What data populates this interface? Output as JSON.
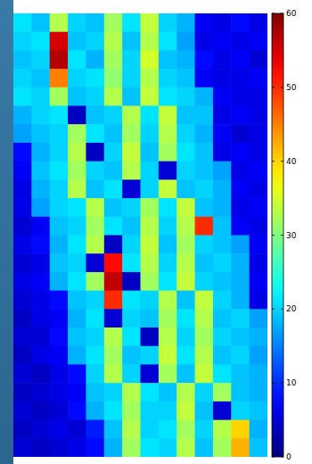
{
  "chart_data": {
    "type": "heatmap",
    "tick_labels": false,
    "cells": [
      [
        21,
        19,
        33,
        20,
        19,
        32,
        21,
        34,
        20,
        18,
        7,
        6,
        8,
        6
      ],
      [
        20,
        21,
        55,
        19,
        20,
        33,
        19,
        33,
        21,
        17,
        6,
        7,
        6,
        7
      ],
      [
        19,
        20,
        57,
        21,
        18,
        32,
        20,
        35,
        19,
        18,
        8,
        6,
        7,
        5
      ],
      [
        20,
        19,
        45,
        20,
        21,
        31,
        20,
        33,
        20,
        19,
        7,
        6,
        6,
        7
      ],
      [
        21,
        20,
        32,
        19,
        20,
        33,
        19,
        34,
        21,
        20,
        18,
        7,
        6,
        6
      ],
      [
        18,
        20,
        21,
        4,
        19,
        20,
        33,
        21,
        34,
        19,
        19,
        6,
        7,
        6
      ],
      [
        17,
        19,
        20,
        32,
        21,
        19,
        32,
        20,
        33,
        20,
        18,
        7,
        5,
        6
      ],
      [
        8,
        18,
        20,
        33,
        4,
        20,
        34,
        19,
        32,
        21,
        19,
        6,
        7,
        6
      ],
      [
        7,
        19,
        21,
        32,
        20,
        19,
        33,
        20,
        5,
        20,
        19,
        17,
        6,
        7
      ],
      [
        6,
        18,
        20,
        33,
        19,
        21,
        5,
        20,
        34,
        19,
        20,
        18,
        7,
        6
      ],
      [
        6,
        17,
        20,
        21,
        33,
        19,
        20,
        32,
        21,
        34,
        19,
        18,
        6,
        7
      ],
      [
        5,
        7,
        19,
        20,
        32,
        21,
        19,
        33,
        20,
        33,
        50,
        19,
        7,
        6
      ],
      [
        6,
        8,
        18,
        21,
        33,
        4,
        20,
        34,
        19,
        32,
        20,
        19,
        17,
        7
      ],
      [
        5,
        6,
        19,
        20,
        5,
        52,
        21,
        33,
        20,
        33,
        19,
        20,
        18,
        6
      ],
      [
        6,
        7,
        18,
        21,
        32,
        56,
        4,
        32,
        21,
        34,
        20,
        19,
        18,
        7
      ],
      [
        5,
        6,
        8,
        19,
        20,
        50,
        21,
        20,
        33,
        19,
        34,
        20,
        18,
        6
      ],
      [
        4,
        6,
        7,
        18,
        21,
        5,
        20,
        19,
        32,
        21,
        33,
        19,
        20,
        17
      ],
      [
        5,
        5,
        8,
        19,
        20,
        33,
        21,
        4,
        33,
        20,
        32,
        20,
        19,
        18
      ],
      [
        4,
        6,
        7,
        18,
        21,
        32,
        19,
        20,
        34,
        21,
        33,
        19,
        20,
        17
      ],
      [
        5,
        4,
        6,
        8,
        20,
        33,
        20,
        5,
        32,
        19,
        34,
        21,
        19,
        18
      ],
      [
        4,
        5,
        6,
        7,
        19,
        20,
        33,
        21,
        19,
        33,
        20,
        32,
        19,
        18
      ],
      [
        5,
        4,
        5,
        8,
        18,
        21,
        32,
        20,
        20,
        34,
        19,
        5,
        20,
        19
      ],
      [
        4,
        5,
        6,
        5,
        9,
        19,
        33,
        20,
        21,
        32,
        20,
        33,
        40,
        18
      ],
      [
        5,
        4,
        5,
        6,
        8,
        18,
        32,
        21,
        20,
        33,
        19,
        32,
        42,
        19
      ]
    ],
    "colorbar": {
      "range": [
        0,
        60
      ],
      "ticks": [
        0,
        10,
        20,
        30,
        40,
        50,
        60
      ]
    }
  }
}
